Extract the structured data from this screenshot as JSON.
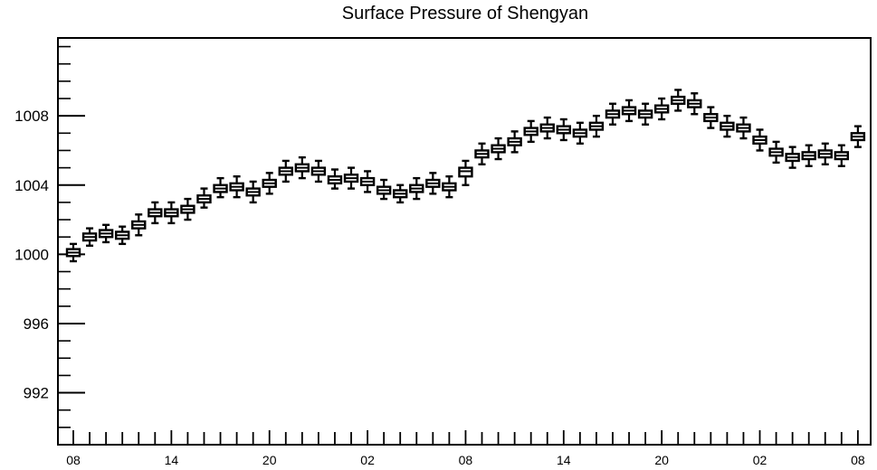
{
  "chart_data": {
    "type": "box",
    "title": "Surface Pressure of Shengyan",
    "xlabel": "",
    "ylabel": "",
    "ylim": [
      989,
      1012.5
    ],
    "yticks": [
      992,
      996,
      1000,
      1004,
      1008
    ],
    "ytick_labels": [
      "992",
      "996",
      "1000",
      "1004",
      "1008"
    ],
    "xticks": [
      0,
      6,
      12,
      18,
      24,
      30,
      36,
      42,
      48
    ],
    "xtick_labels": [
      "08",
      "14",
      "20",
      "02",
      "08",
      "14",
      "20",
      "02",
      "08"
    ],
    "grid": false,
    "series": [
      {
        "x": [
          0,
          1,
          2,
          3,
          4,
          5,
          6,
          7,
          8,
          9,
          10,
          11,
          12,
          13,
          14,
          15,
          16,
          17,
          18,
          19,
          20,
          21,
          22,
          23,
          24,
          25,
          26,
          27,
          28,
          29,
          30,
          31,
          32,
          33,
          34,
          35,
          36,
          37,
          38,
          39,
          40,
          41,
          42,
          43,
          44,
          45,
          46,
          47,
          48
        ],
        "median": [
          1000.1,
          1001.0,
          1001.2,
          1001.1,
          1001.7,
          1002.4,
          1002.4,
          1002.6,
          1003.2,
          1003.8,
          1003.9,
          1003.6,
          1004.1,
          1004.8,
          1005.0,
          1004.8,
          1004.3,
          1004.4,
          1004.2,
          1003.7,
          1003.5,
          1003.8,
          1004.1,
          1003.9,
          1004.8,
          1005.8,
          1006.1,
          1006.5,
          1007.1,
          1007.3,
          1007.2,
          1007.0,
          1007.4,
          1008.1,
          1008.3,
          1008.1,
          1008.4,
          1008.9,
          1008.7,
          1007.9,
          1007.4,
          1007.3,
          1006.6,
          1005.9,
          1005.6,
          1005.7,
          1005.8,
          1005.7,
          1006.8
        ],
        "q1": [
          999.9,
          1000.8,
          1001.0,
          1000.9,
          1001.5,
          1002.2,
          1002.2,
          1002.4,
          1003.0,
          1003.6,
          1003.7,
          1003.4,
          1003.9,
          1004.6,
          1004.8,
          1004.6,
          1004.1,
          1004.2,
          1004.0,
          1003.5,
          1003.3,
          1003.6,
          1003.9,
          1003.7,
          1004.5,
          1005.6,
          1005.9,
          1006.3,
          1006.9,
          1007.1,
          1007.0,
          1006.8,
          1007.2,
          1007.9,
          1008.1,
          1007.9,
          1008.2,
          1008.7,
          1008.5,
          1007.7,
          1007.2,
          1007.1,
          1006.4,
          1005.7,
          1005.4,
          1005.5,
          1005.6,
          1005.5,
          1006.6
        ],
        "q3": [
          1000.3,
          1001.2,
          1001.4,
          1001.3,
          1001.9,
          1002.6,
          1002.6,
          1002.8,
          1003.4,
          1004.0,
          1004.1,
          1003.8,
          1004.3,
          1005.0,
          1005.2,
          1005.0,
          1004.5,
          1004.6,
          1004.4,
          1003.9,
          1003.7,
          1004.0,
          1004.3,
          1004.1,
          1005.0,
          1006.0,
          1006.3,
          1006.7,
          1007.3,
          1007.5,
          1007.4,
          1007.2,
          1007.6,
          1008.3,
          1008.5,
          1008.3,
          1008.6,
          1009.1,
          1008.9,
          1008.1,
          1007.6,
          1007.5,
          1006.8,
          1006.1,
          1005.8,
          1005.9,
          1006.0,
          1005.9,
          1007.0
        ],
        "whisker_low": [
          999.6,
          1000.5,
          1000.7,
          1000.6,
          1001.1,
          1001.8,
          1001.8,
          1002.0,
          1002.7,
          1003.3,
          1003.3,
          1003.0,
          1003.5,
          1004.2,
          1004.4,
          1004.2,
          1003.8,
          1003.8,
          1003.6,
          1003.2,
          1003.0,
          1003.2,
          1003.5,
          1003.3,
          1004.0,
          1005.2,
          1005.5,
          1005.9,
          1006.5,
          1006.7,
          1006.6,
          1006.4,
          1006.8,
          1007.5,
          1007.7,
          1007.5,
          1007.8,
          1008.3,
          1008.1,
          1007.3,
          1006.8,
          1006.7,
          1006.0,
          1005.3,
          1005.0,
          1005.1,
          1005.2,
          1005.1,
          1006.2
        ],
        "whisker_high": [
          1000.6,
          1001.5,
          1001.7,
          1001.6,
          1002.3,
          1003.0,
          1003.0,
          1003.2,
          1003.8,
          1004.4,
          1004.5,
          1004.2,
          1004.7,
          1005.4,
          1005.6,
          1005.4,
          1004.9,
          1005.0,
          1004.8,
          1004.3,
          1004.0,
          1004.4,
          1004.7,
          1004.5,
          1005.4,
          1006.4,
          1006.7,
          1007.1,
          1007.7,
          1007.9,
          1007.8,
          1007.6,
          1008.0,
          1008.7,
          1008.9,
          1008.7,
          1009.0,
          1009.5,
          1009.3,
          1008.5,
          1008.0,
          1007.9,
          1007.2,
          1006.5,
          1006.2,
          1006.3,
          1006.4,
          1006.3,
          1007.4
        ]
      }
    ]
  }
}
